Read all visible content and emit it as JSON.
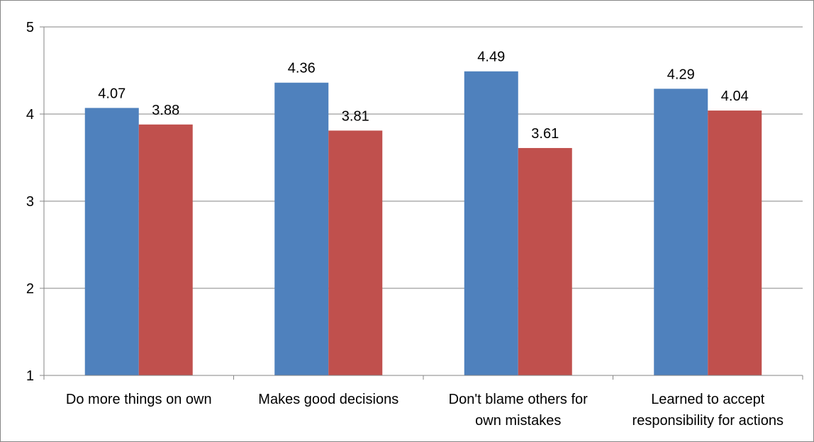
{
  "chart_data": {
    "type": "bar",
    "categories": [
      [
        "Do more things on own"
      ],
      [
        "Makes good decisions"
      ],
      [
        "Don't blame others for",
        "own mistakes"
      ],
      [
        "Learned to accept",
        "responsibility for actions"
      ]
    ],
    "series": [
      {
        "values": [
          4.07,
          4.36,
          4.49,
          4.29
        ],
        "color": "#4F81BD"
      },
      {
        "values": [
          3.88,
          3.81,
          3.61,
          4.04
        ],
        "color": "#C0504D"
      }
    ],
    "data_labels": [
      [
        "4.07",
        "4.36",
        "4.49",
        "4.29"
      ],
      [
        "3.88",
        "3.81",
        "3.61",
        "4.04"
      ]
    ],
    "ylim": [
      1,
      5
    ],
    "yticks": [
      "1",
      "2",
      "3",
      "4",
      "5"
    ],
    "grid": true,
    "legend": "none",
    "title": "",
    "xlabel": "",
    "ylabel": ""
  }
}
